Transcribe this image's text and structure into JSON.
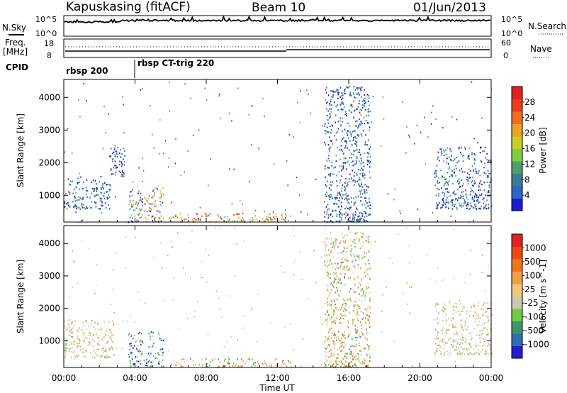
{
  "header": {
    "station": "Kapuskasing (fitACF)",
    "beam": "Beam 10",
    "date": "01/Jun/2013"
  },
  "strip": {
    "nsky_label": "N.Sky",
    "nsky_ticks": [
      "10^5",
      "10^0"
    ],
    "nsearch_label": "N.Search",
    "nsearch_ticks": [
      "10^5",
      "10^0"
    ],
    "freq_label": "Freq.",
    "freq_unit": "[MHz]",
    "freq_ticks": [
      "18",
      "8"
    ],
    "nave_label": "Nave",
    "nave_ticks": [
      "60",
      "0"
    ],
    "cpid_label": "CPID",
    "cpid_segments": [
      {
        "name": "rbsp 200",
        "start_hour": 0.0
      },
      {
        "name": "rbsp CT-trig 220",
        "start_hour": 4.0
      }
    ]
  },
  "panels": {
    "ylabel": "Slant Range [km]",
    "yticks": [
      "4000",
      "3000",
      "2000",
      "1000"
    ],
    "xlabel": "Time UT",
    "xticks": [
      "00:00",
      "04:00",
      "08:00",
      "12:00",
      "16:00",
      "20:00",
      "00:00"
    ]
  },
  "colors": {
    "power": [
      "#1a1adb",
      "#2d64c8",
      "#3c7d96",
      "#4aa066",
      "#7cd23c",
      "#c8d21e",
      "#f0a01e",
      "#f06e1e",
      "#f03c1e",
      "#e61e1e"
    ],
    "velocity": [
      "#1e1ed2",
      "#2d6eb4",
      "#3c9664",
      "#6ecd3c",
      "#c8c8b4",
      "#f0c878",
      "#f0a03c",
      "#f07814",
      "#f04614",
      "#e61e1e"
    ]
  },
  "chart_data": [
    {
      "type": "heatmap",
      "name": "power",
      "xlabel": "Time UT",
      "ylabel": "Slant Range [km]",
      "xlim": [
        0,
        24
      ],
      "ylim": [
        180,
        4550
      ],
      "colorbar_label": "Power [dB]",
      "colorbar_ticks": [
        "28",
        "24",
        "20",
        "16",
        "12",
        "8",
        "4"
      ],
      "regions": [
        {
          "t0": 0.0,
          "t1": 2.6,
          "r0": 600,
          "r1": 1600,
          "level": "low"
        },
        {
          "t0": 2.6,
          "t1": 3.4,
          "r0": 1600,
          "r1": 2500,
          "level": "low"
        },
        {
          "t0": 3.6,
          "t1": 5.6,
          "r0": 200,
          "r1": 1300,
          "level": "mixed"
        },
        {
          "t0": 6.0,
          "t1": 12.8,
          "r0": 200,
          "r1": 480,
          "level": "high"
        },
        {
          "t0": 14.6,
          "t1": 17.2,
          "r0": 200,
          "r1": 4400,
          "level": "low"
        },
        {
          "t0": 20.8,
          "t1": 24.0,
          "r0": 600,
          "r1": 2500,
          "level": "low"
        }
      ]
    },
    {
      "type": "heatmap",
      "name": "velocity",
      "xlabel": "Time UT",
      "ylabel": "Slant Range [km]",
      "xlim": [
        0,
        24
      ],
      "ylim": [
        180,
        4550
      ],
      "colorbar_label": "Velocity [m s^-1]",
      "colorbar_ticks": [
        "1000",
        "500",
        "100",
        "25",
        "-25",
        "-100",
        "-500",
        "-1000"
      ],
      "regions": [
        {
          "t0": 0.0,
          "t1": 2.8,
          "r0": 500,
          "r1": 1700,
          "level": "neutral"
        },
        {
          "t0": 3.6,
          "t1": 5.6,
          "r0": 200,
          "r1": 1300,
          "level": "toward"
        },
        {
          "t0": 6.0,
          "t1": 12.8,
          "r0": 200,
          "r1": 480,
          "level": "away"
        },
        {
          "t0": 14.6,
          "t1": 17.2,
          "r0": 200,
          "r1": 4400,
          "level": "away"
        },
        {
          "t0": 20.8,
          "t1": 24.0,
          "r0": 600,
          "r1": 2200,
          "level": "neutral"
        }
      ]
    }
  ]
}
